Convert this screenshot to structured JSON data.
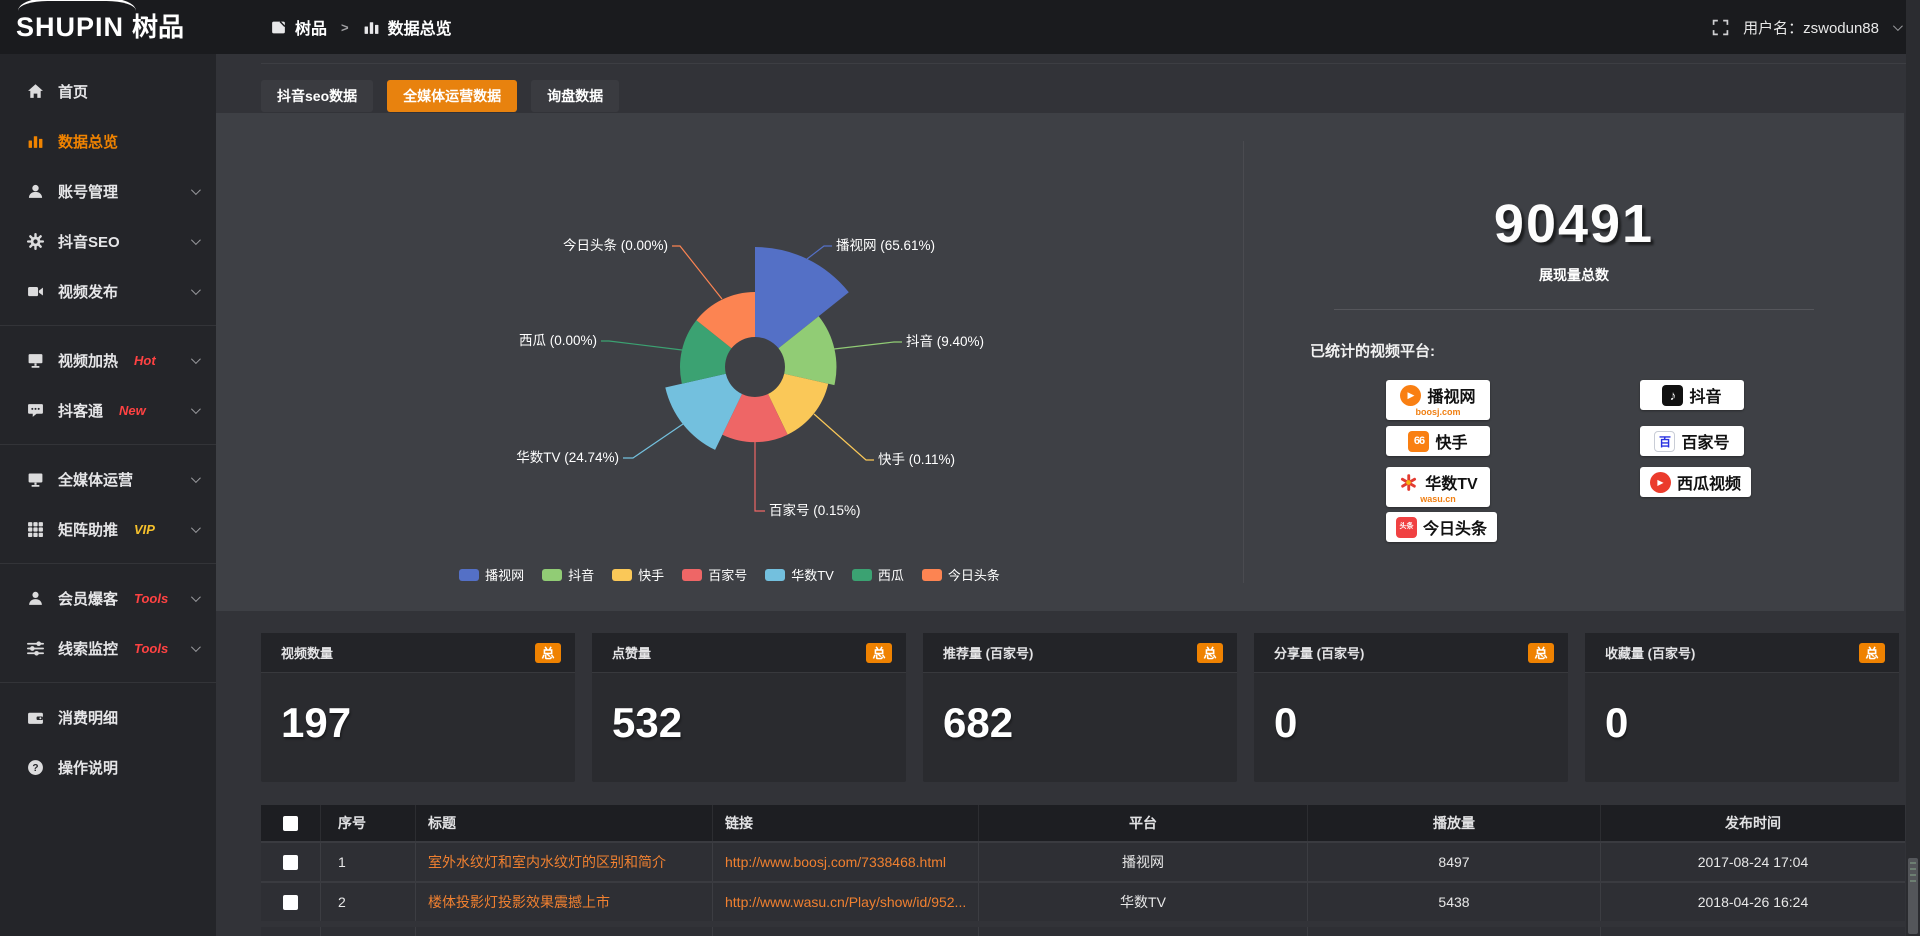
{
  "topbar": {
    "logo_en": "SHUPIN",
    "logo_cn": "树品",
    "breadcrumb": [
      {
        "label": "树品",
        "icon": "app-icon"
      },
      {
        "label": "数据总览",
        "icon": "bar-chart-icon"
      }
    ],
    "username_label": "用户名：",
    "username": "zswodun88",
    "fullscreen_icon": "fullscreen-icon"
  },
  "sidebar": {
    "items": [
      {
        "label": "首页",
        "icon": "home-icon"
      },
      {
        "label": "数据总览",
        "icon": "bar-chart-icon",
        "active": true
      },
      {
        "label": "账号管理",
        "icon": "user-icon",
        "chevron": true
      },
      {
        "label": "抖音SEO",
        "icon": "gear-icon",
        "chevron": true
      },
      {
        "label": "视频发布",
        "icon": "video-icon",
        "chevron": true,
        "divider_after": true
      },
      {
        "label": "视频加热",
        "icon": "screen-icon",
        "badge": "Hot",
        "badge_color": "#ff4242",
        "chevron": true
      },
      {
        "label": "抖客通",
        "icon": "chat-icon",
        "badge": "New",
        "badge_color": "#ff4242",
        "chevron": true,
        "divider_after": true
      },
      {
        "label": "全媒体运营",
        "icon": "monitor-icon",
        "chevron": true
      },
      {
        "label": "矩阵助推",
        "icon": "grid-icon",
        "badge": "VIP",
        "badge_color": "#f6c12c",
        "chevron": true,
        "divider_after": true
      },
      {
        "label": "会员爆客",
        "icon": "member-icon",
        "badge": "Tools",
        "badge_color": "#ff4242",
        "chevron": true
      },
      {
        "label": "线索监控",
        "icon": "sliders-icon",
        "badge": "Tools",
        "badge_color": "#ff4242",
        "chevron": true,
        "divider_after": true
      },
      {
        "label": "消费明细",
        "icon": "wallet-icon"
      },
      {
        "label": "操作说明",
        "icon": "question-icon"
      }
    ]
  },
  "tabs": [
    {
      "label": "抖音seo数据",
      "active": false
    },
    {
      "label": "全媒体运营数据",
      "active": true
    },
    {
      "label": "询盘数据",
      "active": false
    }
  ],
  "chart_data": {
    "type": "pie",
    "subtype": "nightingale-rose-donut",
    "categories": [
      "播视网",
      "抖音",
      "快手",
      "百家号",
      "华数TV",
      "西瓜",
      "今日头条"
    ],
    "values": [
      65.61,
      9.4,
      0.11,
      0.15,
      24.74,
      0.0,
      0.0
    ],
    "labels": [
      "播视网 (65.61%)",
      "抖音 (9.40%)",
      "快手 (0.11%)",
      "百家号 (0.15%)",
      "华数TV (24.74%)",
      "西瓜 (0.00%)",
      "今日头条 (0.00%)"
    ],
    "colors": [
      "#5470c6",
      "#91cc75",
      "#fac858",
      "#ee6666",
      "#73c0de",
      "#3ba272",
      "#fc8452"
    ],
    "legend": [
      "播视网",
      "抖音",
      "快手",
      "百家号",
      "华数TV",
      "西瓜",
      "今日头条"
    ],
    "legend_position": "bottom",
    "unit": "percent"
  },
  "summary": {
    "total_value": "90491",
    "total_label": "展现量总数",
    "platforms_label": "已统计的视频平台:",
    "badges_left": [
      {
        "name": "播视网",
        "sub": "boosj.com",
        "icon": "boosj-icon"
      },
      {
        "name": "快手",
        "icon": "kuaishou-icon"
      },
      {
        "name": "华数TV",
        "sub": "wasu.cn",
        "icon": "wasu-icon"
      },
      {
        "name": "今日头条",
        "icon": "toutiao-icon"
      }
    ],
    "badges_right": [
      {
        "name": "抖音",
        "icon": "douyin-icon"
      },
      {
        "name": "百家号",
        "icon": "baijiahao-icon"
      },
      {
        "name": "西瓜视频",
        "icon": "xigua-icon"
      }
    ]
  },
  "stat_cards": [
    {
      "title": "视频数量",
      "badge": "总",
      "value": "197"
    },
    {
      "title": "点赞量",
      "badge": "总",
      "value": "532"
    },
    {
      "title": "推荐量 (百家号)",
      "badge": "总",
      "value": "682"
    },
    {
      "title": "分享量 (百家号)",
      "badge": "总",
      "value": "0"
    },
    {
      "title": "收藏量 (百家号)",
      "badge": "总",
      "value": "0"
    }
  ],
  "table": {
    "headers": [
      "序号",
      "标题",
      "链接",
      "平台",
      "播放量",
      "发布时间"
    ],
    "rows": [
      {
        "index": "1",
        "title": "室外水纹灯和室内水纹灯的区别和简介",
        "link": "http://www.boosj.com/7338468.html",
        "platform": "播视网",
        "views": "8497",
        "time": "2017-08-24 17:04"
      },
      {
        "index": "2",
        "title": "楼体投影灯投影效果震撼上市",
        "link": "http://www.wasu.cn/Play/show/id/952...",
        "platform": "华数TV",
        "views": "5438",
        "time": "2018-04-26 16:24"
      }
    ]
  }
}
